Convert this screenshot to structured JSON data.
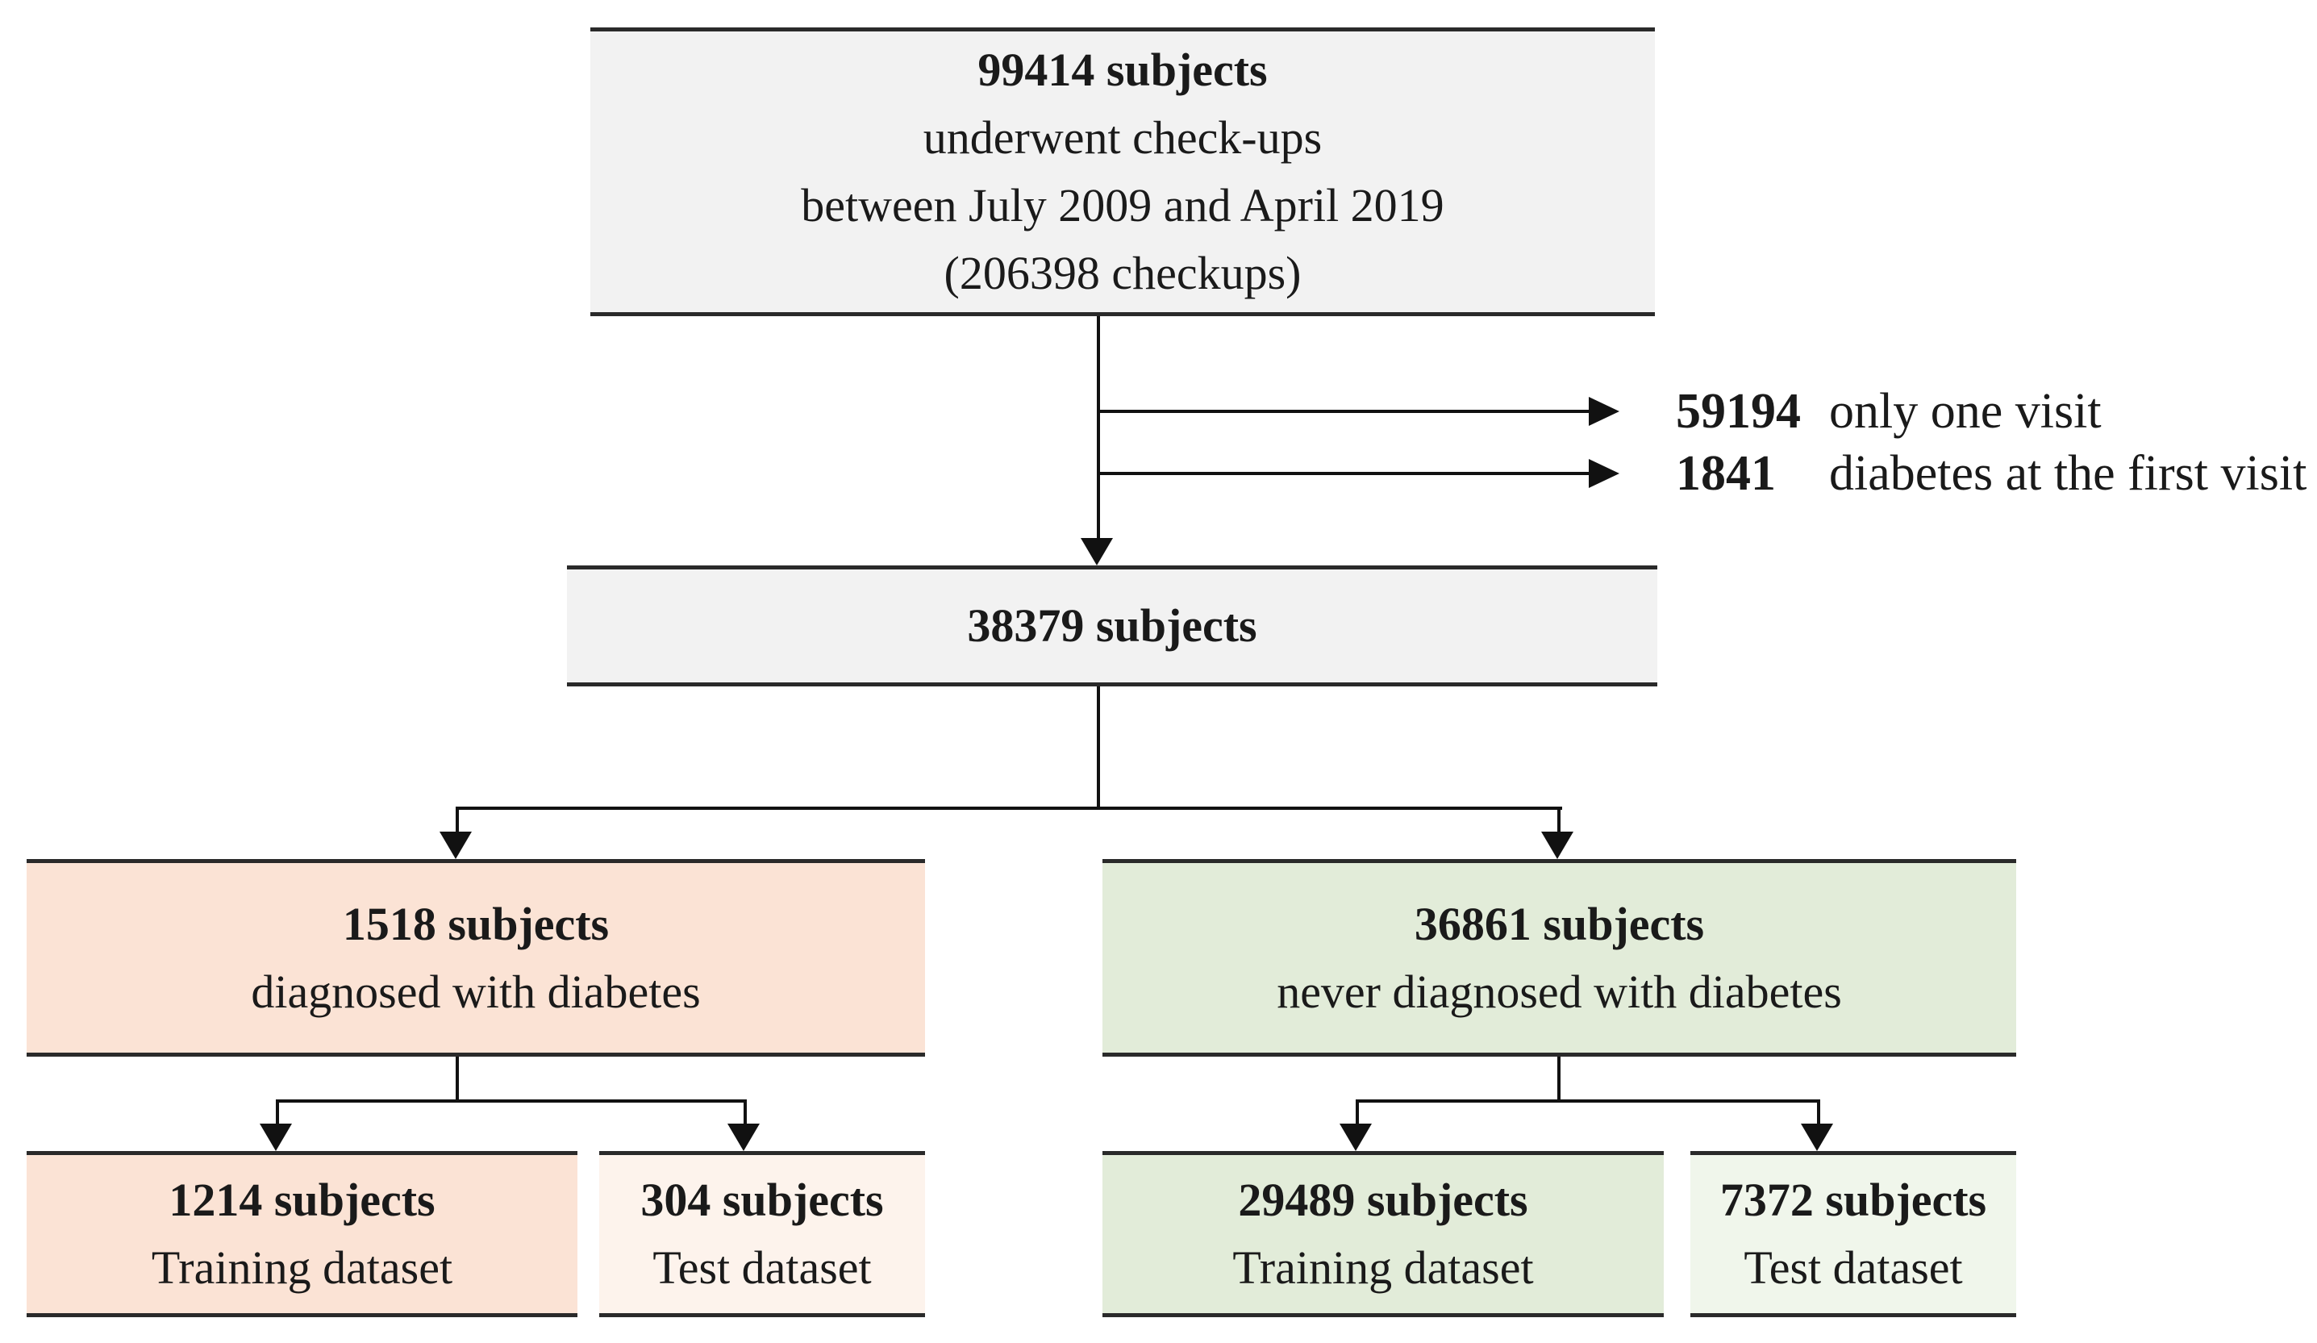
{
  "figure": {
    "type": "flowchart",
    "description": "Subject selection flowchart for check-up cohort split into diabetes / no-diabetes groups and training / test datasets"
  },
  "colors": {
    "box_gray": "#f2f2f2",
    "box_peach": "#fbe3d5",
    "box_peach_light": "#fdf3ec",
    "box_green": "#e2ecd9",
    "box_green_light": "#f0f6eb",
    "box_border": "#2a2a2a",
    "connector": "#111111",
    "text": "#1a1a1a"
  },
  "flow": {
    "initial": {
      "count": "99414 subjects",
      "desc1": "underwent check-ups",
      "desc2": "between July 2009 and April 2019",
      "desc3": "(206398 checkups)"
    },
    "excluded": [
      {
        "count": "59194",
        "label": "only one visit"
      },
      {
        "count": "1841",
        "label": "diabetes at the first visit"
      }
    ],
    "eligible": {
      "count": "38379 subjects"
    },
    "diabetes": {
      "count": "1518 subjects",
      "label": "diagnosed with diabetes"
    },
    "no_diabetes": {
      "count": "36861 subjects",
      "label": "never diagnosed with diabetes"
    },
    "diabetes_training": {
      "count": "1214 subjects",
      "label": "Training dataset"
    },
    "diabetes_test": {
      "count": "304 subjects",
      "label": "Test dataset"
    },
    "no_diabetes_training": {
      "count": "29489 subjects",
      "label": "Training dataset"
    },
    "no_diabetes_test": {
      "count": "7372 subjects",
      "label": "Test dataset"
    }
  }
}
